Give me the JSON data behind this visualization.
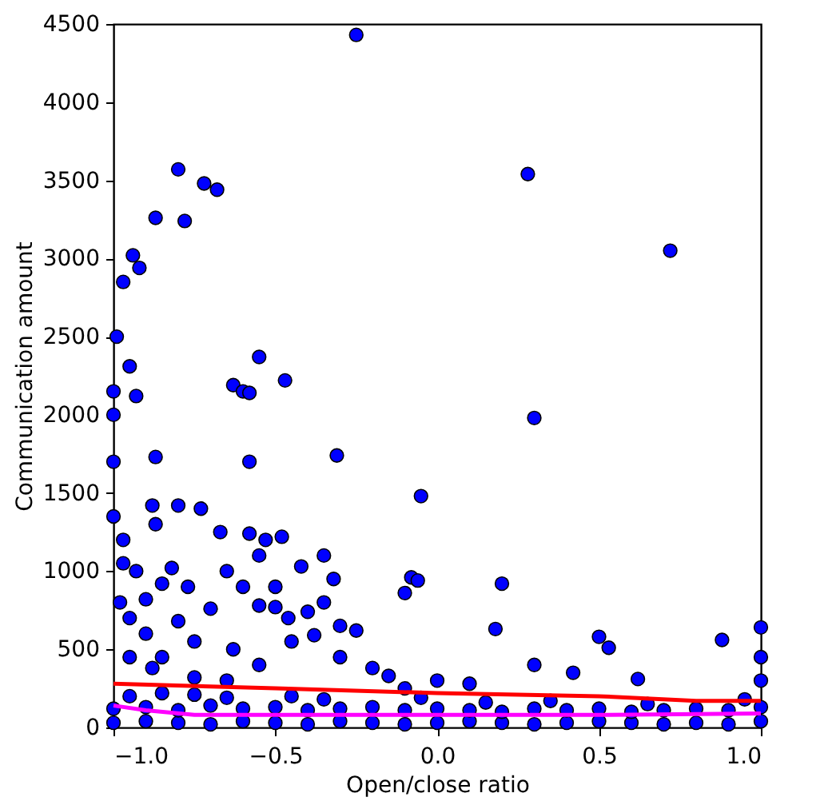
{
  "chart_data": {
    "type": "scatter",
    "xlabel": "Open/close ratio",
    "ylabel": "Communication amount",
    "xlim": [
      -1.0,
      1.0
    ],
    "ylim": [
      0,
      4500
    ],
    "xticks": [
      {
        "value": -1.0,
        "label": "−1.0"
      },
      {
        "value": -0.5,
        "label": "−0.5"
      },
      {
        "value": 0.0,
        "label": "0.0"
      },
      {
        "value": 0.5,
        "label": "0.5"
      },
      {
        "value": 1.0,
        "label": "1.0"
      }
    ],
    "yticks": [
      0,
      500,
      1000,
      1500,
      2000,
      2500,
      3000,
      3500,
      4000,
      4500
    ],
    "grid": false,
    "series": [
      {
        "marker": "circle",
        "color": "#0000ff",
        "x": [
          -0.25,
          0.28,
          0.72,
          -0.8,
          -0.72,
          -0.68,
          -0.87,
          -0.78,
          -0.94,
          -0.92,
          -0.97,
          -0.95,
          -0.93,
          -0.99,
          -1.0,
          -1.0,
          -1.0,
          -0.63,
          -0.6,
          -0.58,
          -0.55,
          -0.47,
          -0.58,
          -0.31,
          0.3,
          -0.05,
          -0.87,
          -0.88,
          -0.87,
          -0.8,
          -0.73,
          -1.0,
          -0.97,
          -0.67,
          -0.58,
          -0.53,
          -0.48,
          -0.55,
          -0.65,
          -0.6,
          -0.5,
          -0.42,
          -0.35,
          -0.32,
          -0.08,
          -0.06,
          0.2,
          0.18,
          -0.1,
          -0.97,
          -0.93,
          -0.9,
          -0.85,
          -0.82,
          -0.77,
          -0.7,
          -0.63,
          -0.55,
          -0.5,
          -0.46,
          -0.4,
          -0.35,
          -0.3,
          -0.38,
          -0.25,
          -0.2,
          -0.8,
          -0.75,
          -0.85,
          -0.9,
          -0.95,
          -0.98,
          0.5,
          0.53,
          0.42,
          0.88,
          0.62,
          1.0,
          0.3,
          0.1,
          0.0,
          -0.1,
          -0.15,
          -0.3,
          -0.45,
          -0.55,
          -0.65,
          -0.75,
          -0.88,
          -0.95,
          -1.0,
          -0.9,
          -0.8,
          -0.7,
          -0.6,
          -0.5,
          -0.4,
          -0.3,
          -0.2,
          -0.1,
          0.0,
          0.1,
          0.2,
          0.3,
          0.4,
          0.5,
          0.6,
          0.7,
          0.8,
          0.9,
          1.0,
          -1.0,
          -0.9,
          -0.8,
          -0.7,
          -0.6,
          -0.5,
          -0.4,
          -0.3,
          -0.2,
          -0.1,
          0.0,
          0.1,
          0.2,
          0.3,
          0.4,
          0.5,
          0.6,
          0.7,
          0.8,
          0.9,
          1.0,
          -0.95,
          -0.85,
          -0.75,
          -0.65,
          -0.45,
          -0.35,
          -0.05,
          0.15,
          0.35,
          0.65,
          0.95,
          1.0,
          1.0
        ],
        "values": [
          4430,
          3540,
          3050,
          3570,
          3480,
          3440,
          3260,
          3240,
          3020,
          2940,
          2850,
          2310,
          2120,
          2500,
          2150,
          2000,
          1700,
          2190,
          2150,
          2140,
          2370,
          2220,
          1700,
          1740,
          1980,
          1480,
          1730,
          1420,
          1300,
          1420,
          1400,
          1350,
          1200,
          1250,
          1240,
          1200,
          1220,
          1100,
          1000,
          900,
          900,
          1030,
          1100,
          950,
          960,
          940,
          920,
          630,
          860,
          1050,
          1000,
          820,
          920,
          1020,
          900,
          760,
          500,
          780,
          770,
          700,
          740,
          800,
          650,
          590,
          620,
          380,
          680,
          550,
          450,
          600,
          700,
          800,
          580,
          510,
          350,
          560,
          310,
          640,
          400,
          280,
          300,
          250,
          330,
          450,
          550,
          400,
          300,
          320,
          380,
          450,
          30,
          40,
          30,
          20,
          40,
          30,
          20,
          40,
          30,
          20,
          30,
          40,
          30,
          20,
          30,
          40,
          30,
          20,
          30,
          20,
          40,
          120,
          130,
          110,
          140,
          120,
          130,
          110,
          120,
          130,
          110,
          120,
          110,
          100,
          120,
          110,
          120,
          100,
          110,
          120,
          110,
          130,
          200,
          220,
          210,
          190,
          200,
          180,
          190,
          160,
          170,
          150,
          180,
          300,
          450
        ]
      },
      {
        "type": "line",
        "color": "#ff0000",
        "x": [
          -1.0,
          -0.5,
          0.0,
          0.5,
          0.8,
          1.0
        ],
        "values": [
          280,
          250,
          220,
          200,
          170,
          170
        ]
      },
      {
        "type": "line",
        "color": "#ff00ff",
        "x": [
          -1.0,
          -0.9,
          -0.75,
          -0.5,
          0.0,
          0.5,
          1.0
        ],
        "values": [
          140,
          110,
          80,
          80,
          80,
          80,
          90
        ]
      }
    ]
  }
}
